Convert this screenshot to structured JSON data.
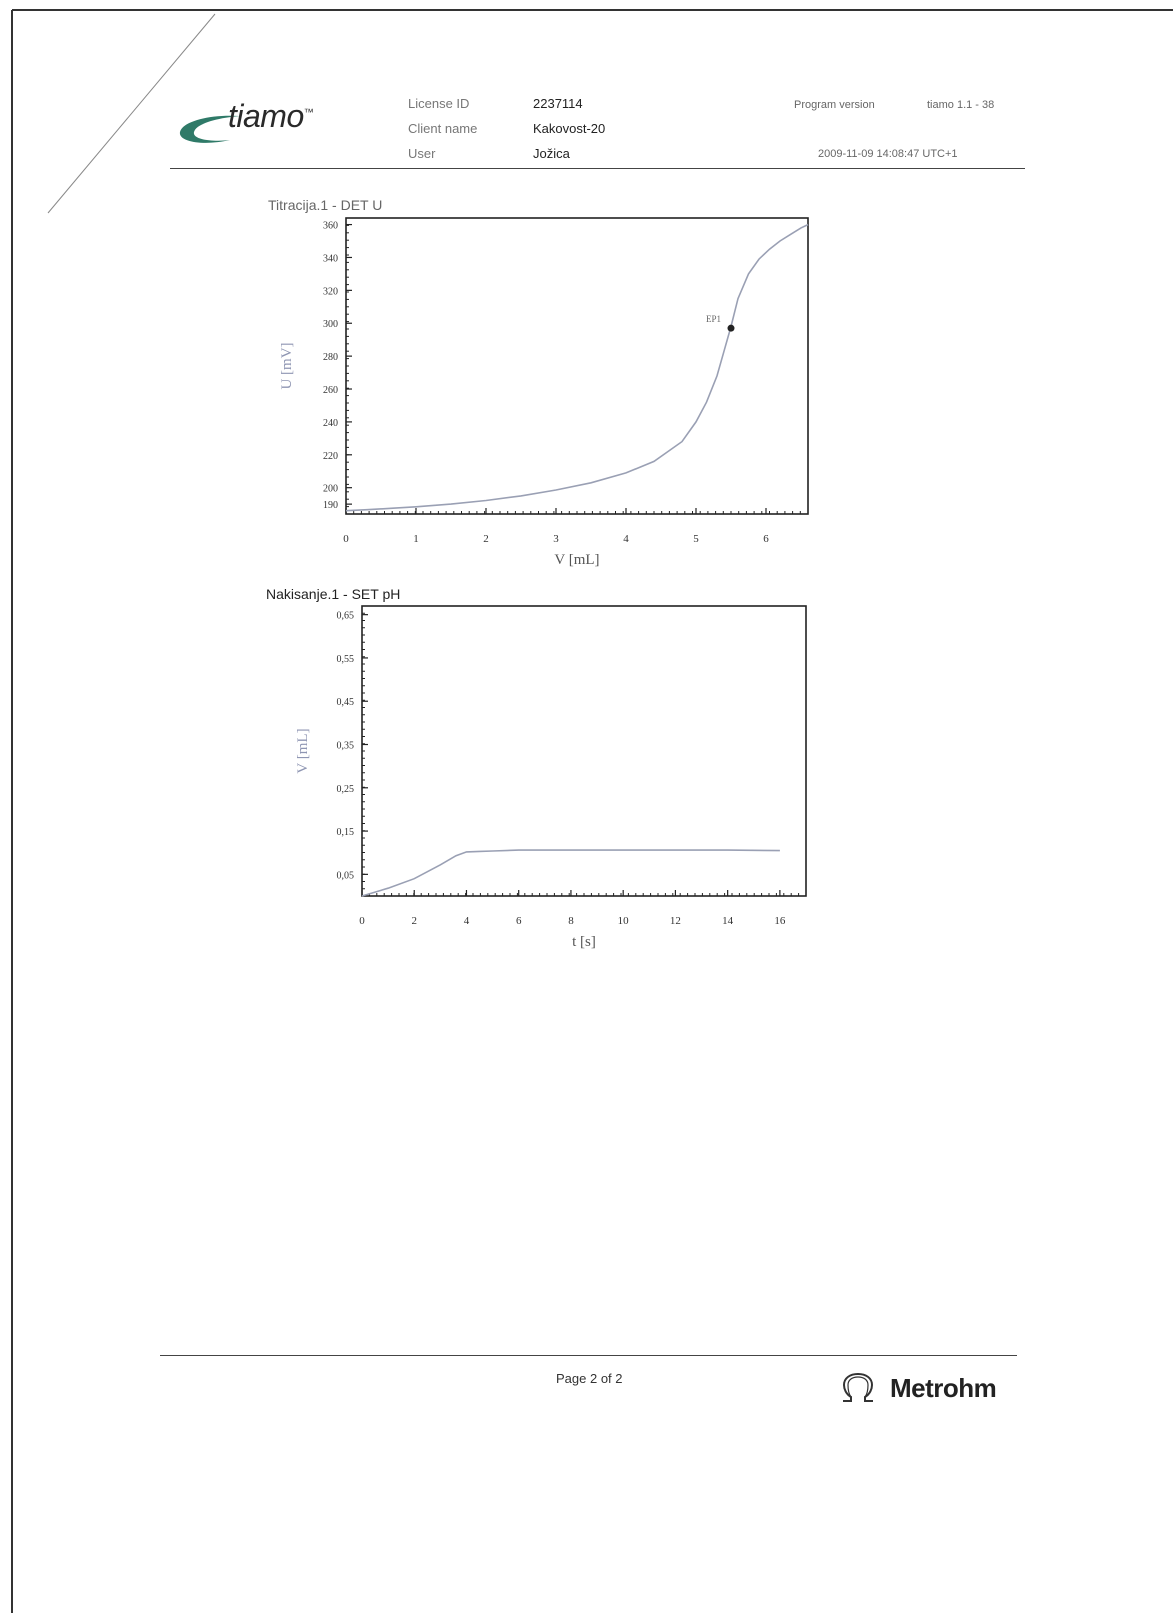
{
  "header": {
    "logo_text": "tiamo",
    "logo_mark": "™",
    "license_label": "License ID",
    "license_value": "2237114",
    "client_label": "Client name",
    "client_value": "Kakovost-20",
    "user_label": "User",
    "user_value": "Jožica",
    "program_label": "Program version",
    "program_value": "tiamo 1.1 - 38",
    "datetime": "2009-11-09 14:08:47 UTC+1"
  },
  "footer": {
    "page_text": "Page 2 of  2",
    "brand": "Metrohm"
  },
  "colors": {
    "curve": "#9aa0b4",
    "axis_label": "#8f96b3",
    "logo_swoosh": "#2f7a68"
  },
  "chart_data": [
    {
      "type": "line",
      "title": "Titracija.1 - DET U",
      "xlabel": "V [mL]",
      "ylabel": "U [mV]",
      "xlim": [
        0,
        6.6
      ],
      "ylim": [
        184,
        364
      ],
      "x_ticks": [
        "0",
        "1",
        "2",
        "3",
        "4",
        "5",
        "6"
      ],
      "y_ticks": [
        "190",
        "200",
        "220",
        "240",
        "260",
        "280",
        "300",
        "320",
        "340",
        "360"
      ],
      "grid": false,
      "series": [
        {
          "x": [
            0,
            0.3,
            0.7,
            1.0,
            1.5,
            2.0,
            2.5,
            3.0,
            3.5,
            4.0,
            4.4,
            4.8,
            5.0,
            5.15,
            5.3,
            5.4,
            5.5,
            5.6,
            5.75,
            5.9,
            6.05,
            6.2,
            6.35,
            6.5,
            6.6
          ],
          "y": [
            186,
            186.6,
            187.6,
            188.4,
            190,
            192.2,
            195,
            198.6,
            203,
            209,
            216,
            228,
            240,
            252,
            268,
            283,
            298,
            315,
            330,
            339,
            345,
            350,
            354,
            358,
            360
          ]
        }
      ],
      "annotations": [
        {
          "label": "EP1",
          "x": 5.5,
          "y": 297
        }
      ]
    },
    {
      "type": "line",
      "title": "Nakisanje.1 - SET pH",
      "xlabel": "t [s]",
      "ylabel": "V [mL]",
      "xlim": [
        0,
        17
      ],
      "ylim": [
        0,
        0.67
      ],
      "x_ticks": [
        "0",
        "2",
        "4",
        "6",
        "8",
        "10",
        "12",
        "14",
        "16"
      ],
      "y_ticks": [
        "0,05",
        "0,15",
        "0,25",
        "0,35",
        "0,45",
        "0,55",
        "0,65"
      ],
      "grid": false,
      "series": [
        {
          "x": [
            0,
            1,
            2,
            3,
            3.6,
            4,
            4.5,
            5,
            6,
            8,
            10,
            12,
            14,
            16
          ],
          "y": [
            0.0,
            0.018,
            0.04,
            0.072,
            0.093,
            0.102,
            0.103,
            0.104,
            0.106,
            0.106,
            0.106,
            0.106,
            0.106,
            0.105
          ]
        }
      ],
      "annotations": []
    }
  ]
}
